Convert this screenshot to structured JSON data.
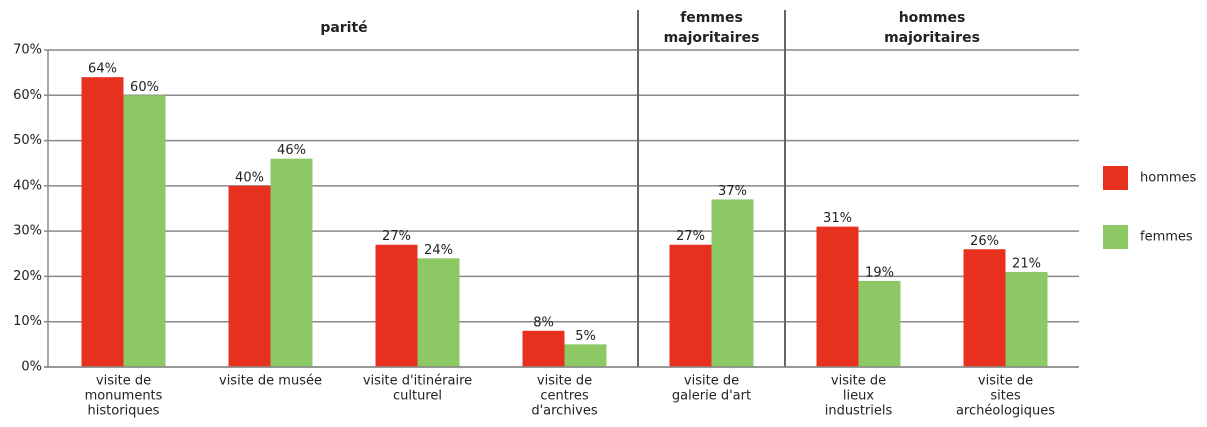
{
  "chart_data": {
    "type": "bar",
    "categories": [
      [
        "visite de",
        "monuments",
        "historiques"
      ],
      [
        "visite de musée"
      ],
      [
        "visite d'itinéraire",
        "culturel"
      ],
      [
        "visite de",
        "centres",
        "d'archives"
      ],
      [
        "visite de",
        "galerie d'art"
      ],
      [
        "visite de",
        "lieux",
        "industriels"
      ],
      [
        "visite de",
        "sites",
        "archéologiques"
      ]
    ],
    "groups": [
      {
        "label": [
          "parité"
        ],
        "span": 4
      },
      {
        "label": [
          "femmes",
          "majoritaires"
        ],
        "span": 1
      },
      {
        "label": [
          "hommes",
          "majoritaires"
        ],
        "span": 2
      }
    ],
    "series": [
      {
        "name": "hommes",
        "color": "#e8301f",
        "values": [
          64,
          40,
          27,
          8,
          27,
          31,
          26
        ],
        "value_labels": [
          "64%",
          "40%",
          "27%",
          "8%",
          "27%",
          "31%",
          "26%"
        ]
      },
      {
        "name": "femmes",
        "color": "#8cc864",
        "values": [
          60,
          46,
          24,
          5,
          37,
          19,
          21
        ],
        "value_labels": [
          "60%",
          "46%",
          "24%",
          "5%",
          "37%",
          "19%",
          "21%"
        ]
      }
    ],
    "ylim": [
      0,
      70
    ],
    "yticks": [
      {
        "value": 0,
        "label": "0%"
      },
      {
        "value": 10,
        "label": "10%"
      },
      {
        "value": 20,
        "label": "20%"
      },
      {
        "value": 30,
        "label": "30%"
      },
      {
        "value": 40,
        "label": "40%"
      },
      {
        "value": 50,
        "label": "50%"
      },
      {
        "value": 60,
        "label": "60%"
      },
      {
        "value": 70,
        "label": "70%"
      }
    ],
    "grid": true,
    "legend": "right"
  }
}
